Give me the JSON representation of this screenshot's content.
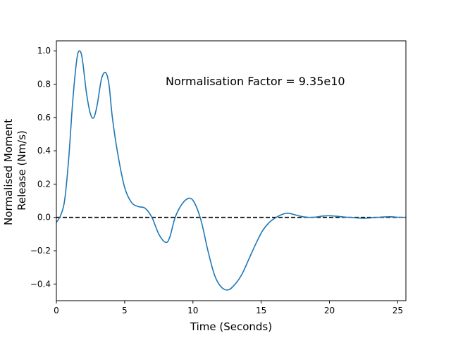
{
  "chart_data": {
    "type": "line",
    "xlabel": "Time (Seconds)",
    "ylabel": "Normalised Moment Release (Nm/s)",
    "ylabel_lines": [
      "Normalised Moment",
      "Release (Nm/s)"
    ],
    "annotation": "Normalisation Factor = 9.35e10",
    "xlim": [
      0,
      25.6
    ],
    "ylim": [
      -0.5,
      1.06
    ],
    "xticks": [
      0,
      5,
      10,
      15,
      20,
      25
    ],
    "xtick_labels": [
      "0",
      "5",
      "10",
      "15",
      "20",
      "25"
    ],
    "yticks": [
      -0.4,
      -0.2,
      0.0,
      0.2,
      0.4,
      0.6,
      0.8,
      1.0
    ],
    "ytick_labels": [
      "−0.4",
      "−0.2",
      "0.0",
      "0.2",
      "0.4",
      "0.6",
      "0.8",
      "1.0"
    ],
    "grid": false,
    "reference_line": {
      "y": 0,
      "style": "dashed",
      "color": "#000000"
    },
    "series": [
      {
        "color": "#1f77b4",
        "x": [
          0.0,
          0.3,
          0.6,
          0.9,
          1.2,
          1.5,
          1.7,
          1.9,
          2.2,
          2.5,
          2.75,
          3.0,
          3.3,
          3.6,
          3.85,
          4.1,
          4.5,
          5.0,
          5.5,
          6.0,
          6.5,
          7.0,
          7.5,
          8.0,
          8.3,
          8.7,
          9.2,
          9.7,
          10.1,
          10.6,
          11.1,
          11.6,
          12.1,
          12.6,
          13.1,
          13.6,
          14.1,
          14.6,
          15.1,
          15.6,
          16.1,
          16.6,
          17.0,
          17.5,
          18.0,
          18.5,
          19.0,
          19.5,
          20.0,
          20.5,
          21.0,
          21.5,
          22.0,
          22.5,
          23.0,
          23.5,
          24.0,
          24.5,
          25.0,
          25.6
        ],
        "y": [
          -0.03,
          0.01,
          0.1,
          0.35,
          0.7,
          0.95,
          1.0,
          0.95,
          0.75,
          0.62,
          0.6,
          0.68,
          0.83,
          0.87,
          0.8,
          0.6,
          0.38,
          0.18,
          0.09,
          0.065,
          0.055,
          0.0,
          -0.1,
          -0.15,
          -0.12,
          0.0,
          0.08,
          0.115,
          0.09,
          -0.02,
          -0.2,
          -0.35,
          -0.42,
          -0.435,
          -0.4,
          -0.34,
          -0.25,
          -0.16,
          -0.08,
          -0.03,
          0.0,
          0.02,
          0.025,
          0.015,
          0.005,
          0.0,
          0.002,
          0.008,
          0.01,
          0.007,
          0.003,
          0.0,
          -0.003,
          -0.005,
          -0.003,
          0.0,
          0.003,
          0.004,
          0.001,
          0.0
        ]
      }
    ]
  }
}
